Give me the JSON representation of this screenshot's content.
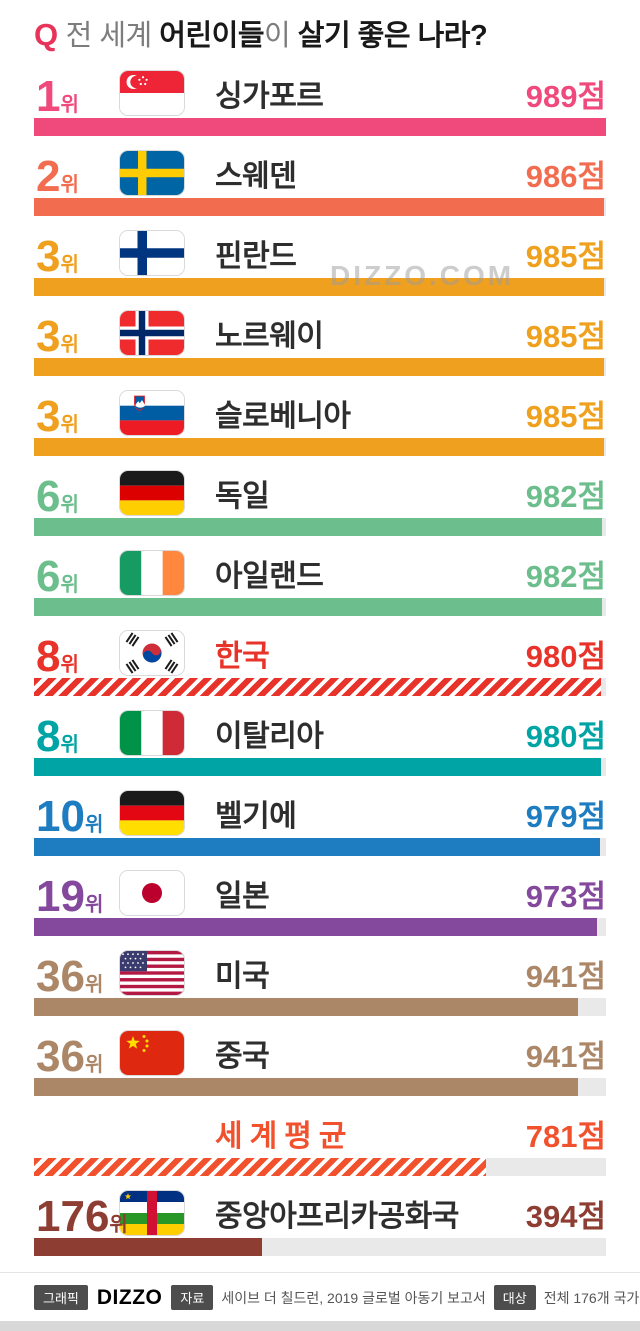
{
  "title": {
    "q": "Q",
    "seg1": "전 세계 ",
    "seg2": "어린이들",
    "seg3": "이 ",
    "seg4": "살기 좋은 나라?"
  },
  "watermark": "DIZZO.COM",
  "rows": [
    {
      "rank": "1",
      "rank_suffix": "위",
      "name": "싱가포르",
      "score": 989,
      "score_label": "989점",
      "color": "#EF4A7B",
      "hatched": false,
      "flag": "flag-singapore"
    },
    {
      "rank": "2",
      "rank_suffix": "위",
      "name": "스웨덴",
      "score": 986,
      "score_label": "986점",
      "color": "#F26C4F",
      "hatched": false,
      "flag": "flag-sweden"
    },
    {
      "rank": "3",
      "rank_suffix": "위",
      "name": "핀란드",
      "score": 985,
      "score_label": "985점",
      "color": "#EFA01E",
      "hatched": false,
      "flag": "flag-finland"
    },
    {
      "rank": "3",
      "rank_suffix": "위",
      "name": "노르웨이",
      "score": 985,
      "score_label": "985점",
      "color": "#EFA01E",
      "hatched": false,
      "flag": "flag-norway"
    },
    {
      "rank": "3",
      "rank_suffix": "위",
      "name": "슬로베니아",
      "score": 985,
      "score_label": "985점",
      "color": "#EFA01E",
      "hatched": false,
      "flag": "flag-slovenia"
    },
    {
      "rank": "6",
      "rank_suffix": "위",
      "name": "독일",
      "score": 982,
      "score_label": "982점",
      "color": "#6CBE8C",
      "hatched": false,
      "flag": "flag-germany"
    },
    {
      "rank": "6",
      "rank_suffix": "위",
      "name": "아일랜드",
      "score": 982,
      "score_label": "982점",
      "color": "#6CBE8C",
      "hatched": false,
      "flag": "flag-ireland"
    },
    {
      "rank": "8",
      "rank_suffix": "위",
      "name": "한국",
      "score": 980,
      "score_label": "980점",
      "color": "#E8332A",
      "hatched": true,
      "flag": "flag-south-korea",
      "name_color": "#E8332A"
    },
    {
      "rank": "8",
      "rank_suffix": "위",
      "name": "이탈리아",
      "score": 980,
      "score_label": "980점",
      "color": "#00A4A4",
      "hatched": false,
      "flag": "flag-italy"
    },
    {
      "rank": "10",
      "rank_suffix": "위",
      "name": "벨기에",
      "score": 979,
      "score_label": "979점",
      "color": "#1E7CC0",
      "hatched": false,
      "flag": "flag-belgium"
    },
    {
      "rank": "19",
      "rank_suffix": "위",
      "name": "일본",
      "score": 973,
      "score_label": "973점",
      "color": "#84489C",
      "hatched": false,
      "flag": "flag-japan"
    },
    {
      "rank": "36",
      "rank_suffix": "위",
      "name": "미국",
      "score": 941,
      "score_label": "941점",
      "color": "#AC8767",
      "hatched": false,
      "flag": "flag-usa"
    },
    {
      "rank": "36",
      "rank_suffix": "위",
      "name": "중국",
      "score": 941,
      "score_label": "941점",
      "color": "#AC8767",
      "hatched": false,
      "flag": "flag-china"
    },
    {
      "rank": "",
      "rank_suffix": "",
      "name": "세계평균",
      "score": 781,
      "score_label": "781점",
      "color": "#F2512E",
      "hatched": true,
      "flag": null,
      "name_color": "#F2512E"
    },
    {
      "rank": "176",
      "rank_suffix": "위",
      "name": "중앙아프리카공화국",
      "score": 394,
      "score_label": "394점",
      "color": "#8E3D32",
      "hatched": false,
      "flag": "flag-central-african-republic"
    }
  ],
  "footer": {
    "graphic_label": "그래픽",
    "logo": "DIZZO",
    "source_label": "자료",
    "source_text": "세이브 더 칠드런, 2019 글로벌 아동기 보고서",
    "target_label": "대상",
    "target_text": "전체 176개 국가"
  },
  "chart_data": {
    "type": "bar",
    "orientation": "horizontal",
    "title": "Q 전 세계 어린이들이 살기 좋은 나라?",
    "unit": "점",
    "max_score": 989,
    "xlim": [
      0,
      989
    ],
    "categories": [
      "싱가포르",
      "스웨덴",
      "핀란드",
      "노르웨이",
      "슬로베니아",
      "독일",
      "아일랜드",
      "한국",
      "이탈리아",
      "벨기에",
      "일본",
      "미국",
      "중국",
      "세계평균",
      "중앙아프리카공화국"
    ],
    "values": [
      989,
      986,
      985,
      985,
      985,
      982,
      982,
      980,
      980,
      979,
      973,
      941,
      941,
      781,
      394
    ],
    "ranks": [
      "1위",
      "2위",
      "3위",
      "3위",
      "3위",
      "6위",
      "6위",
      "8위",
      "8위",
      "10위",
      "19위",
      "36위",
      "36위",
      "",
      "176위"
    ],
    "highlighted": [
      "한국",
      "세계평균"
    ],
    "source": "세이브 더 칠드런, 2019 글로벌 아동기 보고서"
  }
}
